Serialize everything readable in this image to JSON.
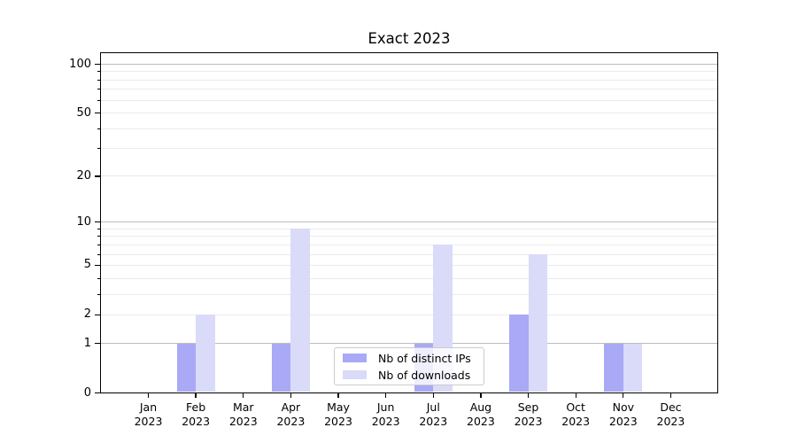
{
  "chart_data": {
    "type": "bar",
    "title": "Exact 2023",
    "year_label": "2023",
    "categories": [
      "Jan",
      "Feb",
      "Mar",
      "Apr",
      "May",
      "Jun",
      "Jul",
      "Aug",
      "Sep",
      "Oct",
      "Nov",
      "Dec"
    ],
    "series": [
      {
        "name": "Nb of distinct IPs",
        "color": "#a9a9f6",
        "values": [
          0,
          1,
          0,
          1,
          0,
          0,
          1,
          0,
          2,
          0,
          1,
          0
        ]
      },
      {
        "name": "Nb of downloads",
        "color": "#dadaf9",
        "values": [
          0,
          2,
          0,
          9,
          0,
          0,
          7,
          0,
          6,
          0,
          1,
          0
        ]
      }
    ],
    "yscale": "log1p",
    "ylim": [
      0,
      118.6
    ],
    "yticks_labeled": [
      0,
      1,
      2,
      5,
      10,
      20,
      50,
      100
    ],
    "gridlines_dark": [
      1,
      10,
      100
    ],
    "gridlines_light": [
      2,
      3,
      4,
      5,
      6,
      7,
      8,
      9,
      20,
      30,
      40,
      50,
      60,
      70,
      80,
      90
    ],
    "grid": true,
    "legend_position": "lower center",
    "colors": {
      "grid_dark": "#bcbcbc",
      "grid_light": "#ebebeb",
      "spine": "#000000",
      "background": "#ffffff",
      "legend_border": "#cccccc"
    }
  }
}
